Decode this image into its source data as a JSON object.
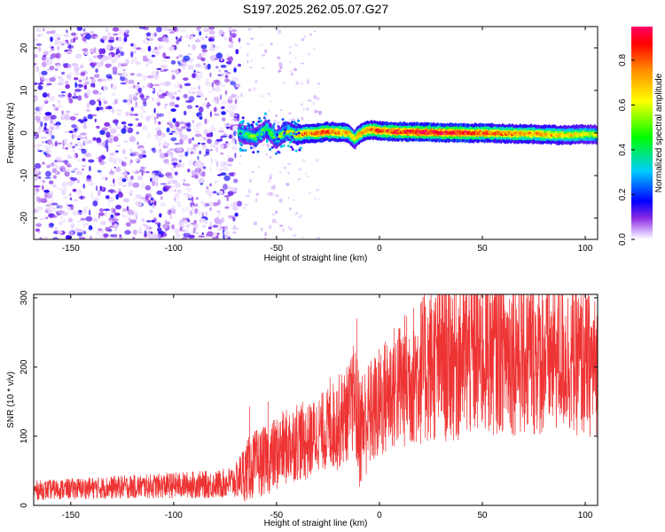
{
  "title": "S197.2025.262.05.07.G27",
  "chart_data": [
    {
      "type": "heatmap",
      "xlabel": "Height of straight line (km)",
      "ylabel": "Frequency (Hz)",
      "xlim": [
        -168,
        106
      ],
      "ylim": [
        -25,
        25
      ],
      "xticks": [
        -150,
        -100,
        -50,
        0,
        50,
        100
      ],
      "yticks": [
        -20,
        -10,
        0,
        10,
        20
      ],
      "colorbar": {
        "label": "Normalized spectral amplitude",
        "range": [
          0.0,
          0.95
        ],
        "ticks": [
          0.0,
          0.2,
          0.4,
          0.6,
          0.8
        ],
        "colors": [
          "#ffffff",
          "#cc99ff",
          "#6600ff",
          "#0000ff",
          "#00ffff",
          "#00ff00",
          "#ffff00",
          "#ff9900",
          "#ff0000",
          "#ff00cc"
        ]
      },
      "noise_region_x": [
        -168,
        -68
      ],
      "signal": {
        "x": [
          -68,
          -60,
          -55,
          -50,
          -45,
          -40,
          -35,
          -30,
          -25,
          -20,
          -15,
          -12,
          -10,
          -8,
          -5,
          0,
          10,
          20,
          30,
          40,
          50,
          60,
          70,
          80,
          90,
          100,
          106
        ],
        "freq": [
          0.0,
          -1.0,
          1.0,
          -1.5,
          0.5,
          -0.5,
          0.0,
          0.0,
          0.3,
          0.2,
          0.0,
          -1.5,
          -0.5,
          0.3,
          0.8,
          0.5,
          0.3,
          0.2,
          0.1,
          0.0,
          0.0,
          -0.1,
          -0.2,
          -0.3,
          -0.5,
          -0.3,
          -0.4
        ],
        "amplitude": [
          0.45,
          0.5,
          0.45,
          0.5,
          0.6,
          0.7,
          0.75,
          0.8,
          0.8,
          0.75,
          0.7,
          0.6,
          0.65,
          0.7,
          0.75,
          0.8,
          0.85,
          0.9,
          0.88,
          0.85,
          0.8,
          0.75,
          0.72,
          0.7,
          0.65,
          0.6,
          0.55
        ]
      }
    },
    {
      "type": "line",
      "xlabel": "Height of straight line (km)",
      "ylabel": "SNR (10 * v/v)",
      "xlim": [
        -168,
        106
      ],
      "ylim": [
        0,
        305
      ],
      "xticks": [
        -150,
        -100,
        -50,
        0,
        50,
        100
      ],
      "yticks": [
        0,
        100,
        200,
        300
      ],
      "color": "#ee3333",
      "envelope": {
        "x": [
          -168,
          -140,
          -110,
          -90,
          -80,
          -75,
          -70,
          -65,
          -60,
          -55,
          -50,
          -45,
          -40,
          -35,
          -30,
          -25,
          -20,
          -15,
          -12,
          -10,
          -5,
          0,
          5,
          10,
          20,
          30,
          40,
          50,
          60,
          70,
          80,
          90,
          100,
          106
        ],
        "mean": [
          22,
          25,
          28,
          30,
          30,
          32,
          35,
          50,
          60,
          65,
          75,
          85,
          95,
          90,
          105,
          110,
          120,
          135,
          160,
          110,
          130,
          145,
          165,
          175,
          195,
          210,
          215,
          220,
          225,
          220,
          215,
          215,
          205,
          200
        ],
        "amp": [
          14,
          16,
          18,
          20,
          20,
          22,
          25,
          45,
          50,
          50,
          55,
          55,
          60,
          55,
          55,
          60,
          70,
          70,
          80,
          90,
          80,
          85,
          90,
          95,
          110,
          120,
          125,
          125,
          120,
          125,
          115,
          110,
          110,
          100
        ]
      },
      "peaks": [
        {
          "x": -63,
          "y": 143
        },
        {
          "x": -54,
          "y": 150
        },
        {
          "x": -24,
          "y": 185
        },
        {
          "x": -11,
          "y": 270
        },
        {
          "x": 30,
          "y": 270
        },
        {
          "x": 70,
          "y": 300
        },
        {
          "x": 85,
          "y": 280
        }
      ]
    }
  ]
}
